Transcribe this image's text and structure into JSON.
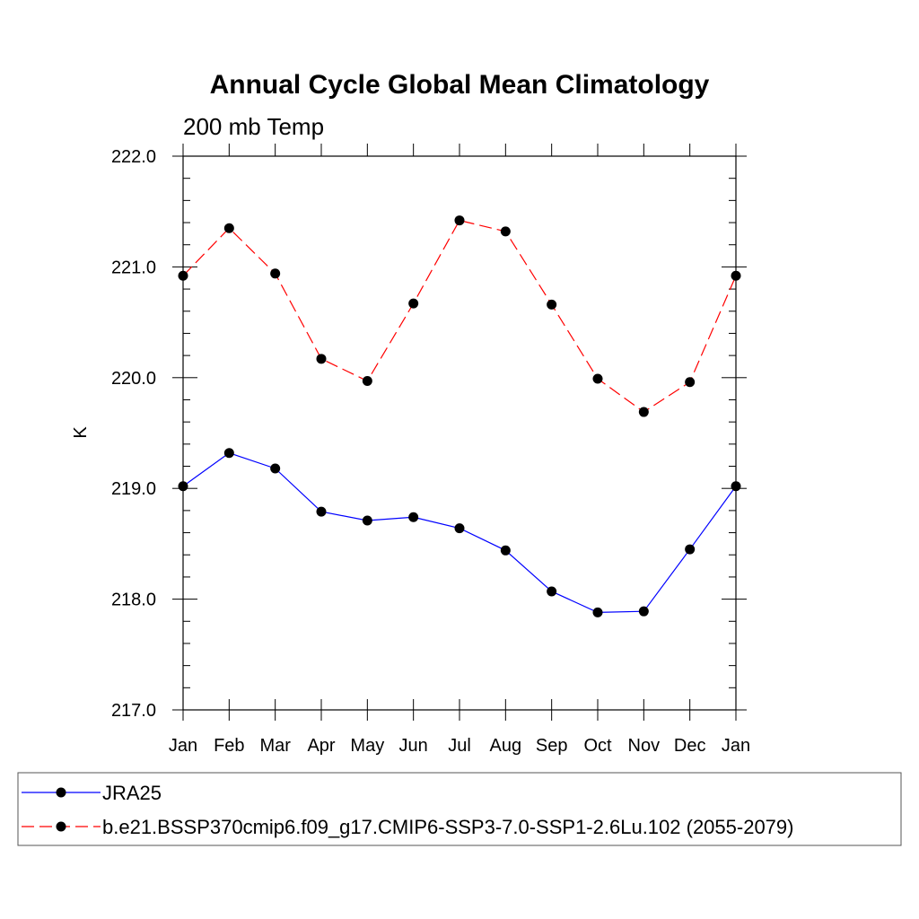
{
  "chart_data": {
    "type": "line",
    "title": "Annual Cycle Global Mean Climatology",
    "subtitle": "200 mb Temp",
    "xlabel": "",
    "ylabel": "K",
    "categories": [
      "Jan",
      "Feb",
      "Mar",
      "Apr",
      "May",
      "Jun",
      "Jul",
      "Aug",
      "Sep",
      "Oct",
      "Nov",
      "Dec",
      "Jan"
    ],
    "ylim": [
      217.0,
      222.0
    ],
    "yticks": [
      "217.0",
      "218.0",
      "219.0",
      "220.0",
      "221.0",
      "222.0"
    ],
    "grid": false,
    "legend_position": "bottom",
    "series": [
      {
        "name": "JRA25",
        "color": "#0000ff",
        "line_style": "solid",
        "marker": "filled-circle",
        "values": [
          219.02,
          219.32,
          219.18,
          218.79,
          218.71,
          218.74,
          218.64,
          218.44,
          218.07,
          217.88,
          217.89,
          218.45,
          219.02
        ]
      },
      {
        "name": "b.e21.BSSP370cmip6.f09_g17.CMIP6-SSP3-7.0-SSP1-2.6Lu.102 (2055-2079)",
        "color": "#ff0000",
        "line_style": "dashed",
        "marker": "filled-circle",
        "values": [
          220.92,
          221.35,
          220.94,
          220.17,
          219.97,
          220.67,
          221.42,
          221.32,
          220.66,
          219.99,
          219.69,
          219.96,
          220.92
        ]
      }
    ]
  }
}
